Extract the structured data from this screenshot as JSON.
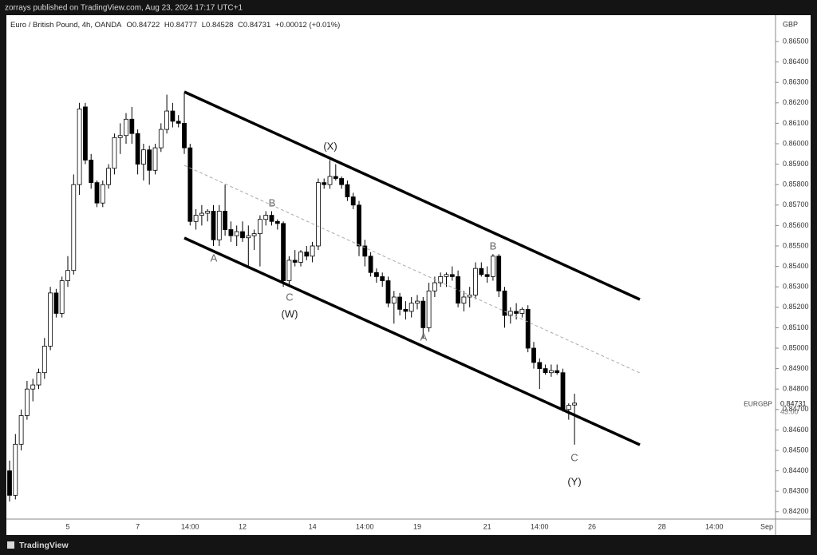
{
  "header": {
    "publisher": "zorrays published on TradingView.com, Aug 23, 2024 17:17 UTC+1",
    "symbol": "Euro / British Pound, 4h, OANDA",
    "ohlc": [
      {
        "label": "O",
        "value": "0.84722"
      },
      {
        "label": "H",
        "value": "0.84777"
      },
      {
        "label": "L",
        "value": "0.84528"
      },
      {
        "label": "C",
        "value": "0.84731"
      }
    ],
    "change": "+0.00012 (+0.01%)"
  },
  "price_tag": {
    "symbol": "EURGBP",
    "price": "0.84731",
    "countdown": "43:00"
  },
  "footer": {
    "brand": "TradingView"
  },
  "annotations": [
    "(X)",
    "B",
    "A",
    "C",
    "(W)",
    "A",
    "B",
    "C",
    "(Y)"
  ],
  "chart_data": {
    "type": "candlestick",
    "currency": "GBP",
    "up_color": "#ffffff",
    "down_color": "#000000",
    "categories": [
      null,
      null,
      null,
      null,
      null,
      null,
      null,
      null,
      null,
      null,
      "5",
      null,
      null,
      null,
      null,
      null,
      null,
      null,
      null,
      null,
      null,
      null,
      "7",
      null,
      null,
      null,
      null,
      null,
      null,
      null,
      null,
      "14:00",
      null,
      null,
      null,
      null,
      null,
      null,
      null,
      null,
      "12",
      null,
      null,
      null,
      null,
      null,
      null,
      null,
      null,
      null,
      null,
      null,
      "14",
      null,
      null,
      null,
      null,
      null,
      null,
      null,
      null,
      "14:00",
      null,
      null,
      null,
      null,
      null,
      null,
      null,
      null,
      "19",
      null,
      null,
      null,
      null,
      null,
      null,
      null,
      null,
      null,
      null,
      null,
      "21",
      null,
      null,
      null,
      null,
      null,
      null,
      null,
      null,
      "14:00",
      null,
      null,
      null,
      null,
      null,
      null,
      null,
      null,
      "26",
      null,
      null,
      null,
      null,
      null,
      null,
      null,
      null,
      null,
      null,
      null,
      "28",
      null,
      null,
      null,
      null,
      null,
      null,
      null,
      null,
      "14:00",
      null,
      null,
      null,
      null,
      null,
      null,
      null,
      null,
      "Sep"
    ],
    "open": [
      0.844,
      0.8428,
      0.8453,
      0.8467,
      0.848,
      0.8482,
      0.8488,
      0.8501,
      0.8527,
      0.8517,
      0.8533,
      0.8538,
      0.858,
      0.8618,
      0.8592,
      0.8581,
      0.8571,
      0.858,
      0.8588,
      0.8603,
      0.8604,
      0.8612,
      0.8605,
      0.859,
      0.8597,
      0.8587,
      0.8598,
      0.8607,
      0.8616,
      0.8611,
      0.861,
      0.8598,
      0.8562,
      0.8565,
      0.8566,
      0.8567,
      0.8553,
      0.8567,
      0.8558,
      0.8555,
      0.8557,
      0.8554,
      0.8555,
      0.8556,
      0.8563,
      0.8565,
      0.8562,
      0.8561,
      0.8533,
      0.8543,
      0.8542,
      0.8547,
      0.8545,
      0.855,
      0.8581,
      0.858,
      0.8584,
      0.8583,
      0.858,
      0.8574,
      0.857,
      0.855,
      0.8545,
      0.8537,
      0.8535,
      0.8533,
      0.8522,
      0.8525,
      0.8519,
      0.8518,
      0.8522,
      0.8523,
      0.851,
      0.8528,
      0.8532,
      0.8535,
      0.8536,
      0.8535,
      0.8522,
      0.8525,
      0.8526,
      0.8539,
      0.8536,
      0.8535,
      0.8545,
      0.8528,
      0.8516,
      0.8518,
      0.8517,
      0.8519,
      0.85,
      0.8493,
      0.849,
      0.8488,
      0.8489,
      0.8488,
      0.847,
      0.84722,
      null,
      null,
      null,
      null,
      null,
      null,
      null,
      null,
      null,
      null,
      null,
      null,
      null,
      null,
      null,
      null,
      null,
      null,
      null,
      null,
      null,
      null,
      null,
      null,
      null,
      null,
      null,
      null,
      null,
      null,
      null,
      null,
      null
    ],
    "high": [
      0.8445,
      0.8458,
      0.847,
      0.8484,
      0.8485,
      0.849,
      0.8505,
      0.853,
      0.8529,
      0.8535,
      0.8545,
      0.8585,
      0.862,
      0.862,
      0.8595,
      0.8582,
      0.8582,
      0.859,
      0.8605,
      0.861,
      0.8615,
      0.8618,
      0.8607,
      0.86,
      0.8599,
      0.86,
      0.861,
      0.8624,
      0.862,
      0.8614,
      0.8625,
      0.86,
      0.8568,
      0.857,
      0.8568,
      0.857,
      0.857,
      0.858,
      0.8562,
      0.856,
      0.8562,
      0.856,
      0.8558,
      0.8565,
      0.8567,
      0.8567,
      0.8563,
      0.8562,
      0.8545,
      0.8548,
      0.8548,
      0.855,
      0.8552,
      0.8583,
      0.8583,
      0.8592,
      0.859,
      0.8584,
      0.8582,
      0.8576,
      0.8572,
      0.8553,
      0.8547,
      0.8539,
      0.8537,
      0.8535,
      0.8528,
      0.8527,
      0.8523,
      0.8525,
      0.8526,
      0.8525,
      0.8532,
      0.8535,
      0.8537,
      0.8537,
      0.854,
      0.8538,
      0.8528,
      0.853,
      0.8542,
      0.8542,
      0.854,
      0.8546,
      0.8546,
      0.853,
      0.852,
      0.8522,
      0.852,
      0.8521,
      0.8503,
      0.8495,
      0.8492,
      0.8492,
      0.8492,
      0.849,
      0.8473,
      0.84777,
      null,
      null,
      null,
      null,
      null,
      null,
      null,
      null,
      null,
      null,
      null,
      null,
      null,
      null,
      null,
      null,
      null,
      null,
      null,
      null,
      null,
      null,
      null,
      null,
      null,
      null,
      null,
      null,
      null,
      null,
      null,
      null,
      null
    ],
    "low": [
      0.8425,
      0.8426,
      0.845,
      0.8465,
      0.8474,
      0.848,
      0.8485,
      0.8499,
      0.8515,
      0.8515,
      0.853,
      0.8536,
      0.8575,
      0.859,
      0.8578,
      0.8569,
      0.8569,
      0.8578,
      0.8585,
      0.8595,
      0.86,
      0.86,
      0.8585,
      0.8582,
      0.858,
      0.8585,
      0.8596,
      0.8605,
      0.8608,
      0.8608,
      0.8595,
      0.856,
      0.8558,
      0.856,
      0.8562,
      0.855,
      0.855,
      0.8555,
      0.8552,
      0.855,
      0.8552,
      0.854,
      0.8548,
      0.854,
      0.856,
      0.856,
      0.8558,
      0.853,
      0.853,
      0.854,
      0.854,
      0.8543,
      0.8542,
      0.8548,
      0.8578,
      0.8578,
      0.8582,
      0.8578,
      0.8572,
      0.8568,
      0.8545,
      0.854,
      0.8535,
      0.8532,
      0.853,
      0.852,
      0.8512,
      0.8516,
      0.8514,
      0.8515,
      0.8519,
      0.8505,
      0.8508,
      0.8525,
      0.853,
      0.853,
      0.8533,
      0.852,
      0.8518,
      0.852,
      0.8524,
      0.8535,
      0.8532,
      0.8533,
      0.8525,
      0.851,
      0.8512,
      0.8514,
      0.8515,
      0.8498,
      0.849,
      0.848,
      0.8487,
      0.8486,
      0.8487,
      0.8469,
      0.8465,
      0.84528,
      null,
      null,
      null,
      null,
      null,
      null,
      null,
      null,
      null,
      null,
      null,
      null,
      null,
      null,
      null,
      null,
      null,
      null,
      null,
      null,
      null,
      null,
      null,
      null,
      null,
      null,
      null,
      null,
      null,
      null,
      null,
      null,
      null
    ],
    "close": [
      0.8428,
      0.8453,
      0.8467,
      0.848,
      0.8482,
      0.8488,
      0.8501,
      0.8527,
      0.8517,
      0.8533,
      0.8538,
      0.858,
      0.8617,
      0.8592,
      0.8581,
      0.8571,
      0.858,
      0.8588,
      0.8603,
      0.8604,
      0.8612,
      0.8605,
      0.859,
      0.8597,
      0.8587,
      0.8598,
      0.8607,
      0.8616,
      0.8611,
      0.861,
      0.8598,
      0.8562,
      0.8565,
      0.8566,
      0.8567,
      0.8553,
      0.8567,
      0.8558,
      0.8555,
      0.8557,
      0.8554,
      0.8555,
      0.8556,
      0.8563,
      0.8565,
      0.8562,
      0.8561,
      0.8533,
      0.8543,
      0.8542,
      0.8547,
      0.8545,
      0.855,
      0.8581,
      0.858,
      0.8584,
      0.8583,
      0.858,
      0.8574,
      0.857,
      0.855,
      0.8545,
      0.8537,
      0.8535,
      0.8533,
      0.8522,
      0.8525,
      0.8519,
      0.8518,
      0.8522,
      0.8523,
      0.851,
      0.8528,
      0.8532,
      0.8535,
      0.8536,
      0.8535,
      0.8522,
      0.8525,
      0.8526,
      0.8539,
      0.8536,
      0.8535,
      0.8545,
      0.8528,
      0.8516,
      0.8518,
      0.8517,
      0.8519,
      0.85,
      0.8493,
      0.849,
      0.8488,
      0.8489,
      0.8488,
      0.847,
      0.8472,
      0.84731,
      null,
      null,
      null,
      null,
      null,
      null,
      null,
      null,
      null,
      null,
      null,
      null,
      null,
      null,
      null,
      null,
      null,
      null,
      null,
      null,
      null,
      null,
      null,
      null,
      null,
      null,
      null,
      null,
      null,
      null,
      null,
      null,
      null
    ],
    "ylim": [
      0.84164,
      0.86625
    ],
    "yticks": [
      {
        "value": 0.842,
        "label": "0.84200"
      },
      {
        "value": 0.843,
        "label": "0.84300"
      },
      {
        "value": 0.844,
        "label": "0.84400"
      },
      {
        "value": 0.845,
        "label": "0.84500"
      },
      {
        "value": 0.846,
        "label": "0.84600"
      },
      {
        "value": 0.847,
        "label": "0.84700"
      },
      {
        "value": 0.848,
        "label": "0.84800"
      },
      {
        "value": 0.849,
        "label": "0.84900"
      },
      {
        "value": 0.85,
        "label": "0.85000"
      },
      {
        "value": 0.851,
        "label": "0.85100"
      },
      {
        "value": 0.852,
        "label": "0.85200"
      },
      {
        "value": 0.853,
        "label": "0.85300"
      },
      {
        "value": 0.854,
        "label": "0.85400"
      },
      {
        "value": 0.855,
        "label": "0.85500"
      },
      {
        "value": 0.856,
        "label": "0.85600"
      },
      {
        "value": 0.857,
        "label": "0.85700"
      },
      {
        "value": 0.858,
        "label": "0.85800"
      },
      {
        "value": 0.859,
        "label": "0.85900"
      },
      {
        "value": 0.86,
        "label": "0.86000"
      },
      {
        "value": 0.861,
        "label": "0.86100"
      },
      {
        "value": 0.862,
        "label": "0.86200"
      },
      {
        "value": 0.863,
        "label": "0.86300"
      },
      {
        "value": 0.864,
        "label": "0.86400"
      },
      {
        "value": 0.865,
        "label": "0.86500"
      }
    ]
  }
}
